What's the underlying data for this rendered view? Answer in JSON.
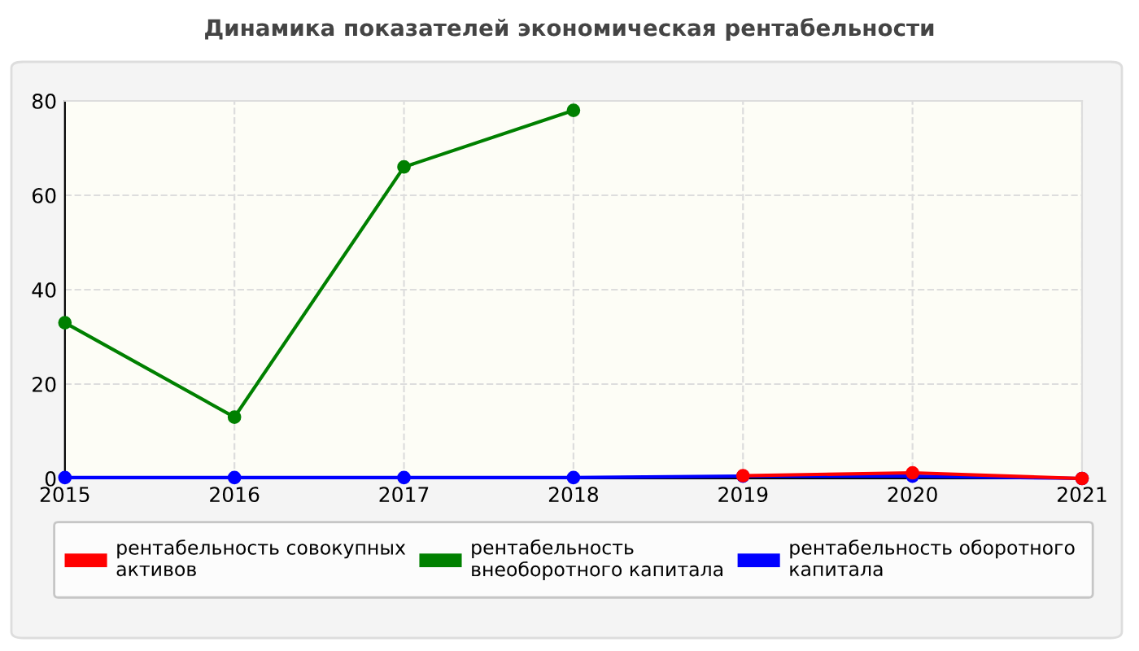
{
  "chart_data": {
    "type": "line",
    "title": "Динамика показателей экономическая рентабельности",
    "x": [
      2015,
      2016,
      2017,
      2018,
      2019,
      2020,
      2021
    ],
    "series": [
      {
        "name": "рентабельность совокупных активов",
        "color": "#ff0000",
        "values": [
          null,
          null,
          null,
          null,
          0.6,
          1.2,
          0
        ]
      },
      {
        "name": "рентабельность внеоборотного капитала",
        "color": "#008000",
        "values": [
          33,
          13,
          66,
          78,
          null,
          null,
          null
        ]
      },
      {
        "name": "рентабельность оборотного капитала",
        "color": "#0000ff",
        "values": [
          0.2,
          0.2,
          0.2,
          0.2,
          0.5,
          0.5,
          0
        ]
      }
    ],
    "xlim": [
      2015,
      2021
    ],
    "xticks": [
      2015,
      2016,
      2017,
      2018,
      2019,
      2020,
      2021
    ],
    "ylim": [
      0,
      80
    ],
    "yticks": [
      0,
      20,
      40,
      60,
      80
    ],
    "grid": true,
    "legend": "bottom",
    "marker": "circle",
    "line_style": "solid"
  }
}
